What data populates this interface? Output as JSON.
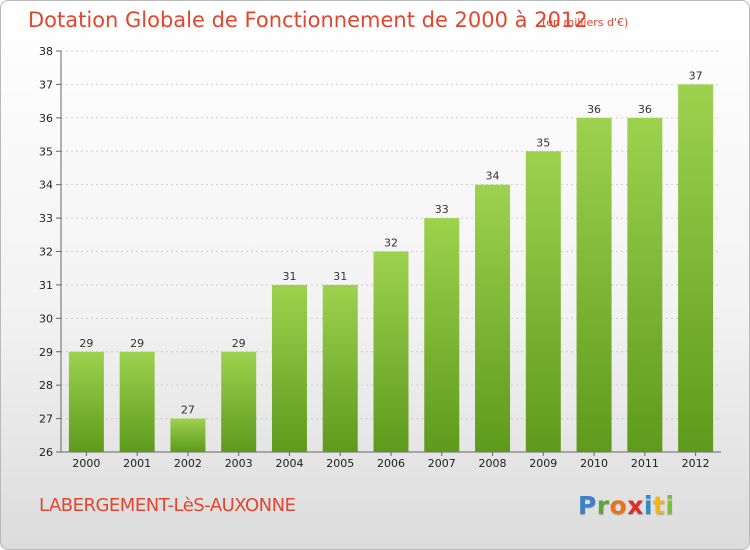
{
  "header": {
    "title": "Dotation Globale de Fonctionnement de 2000 à 2012",
    "unit": "(en milliers d'€)"
  },
  "footer": {
    "commune": "LABERGEMENT-LèS-AUXONNE",
    "logo_letters": [
      {
        "char": "P",
        "color": "#3f7fc6"
      },
      {
        "char": "r",
        "color": "#5aa83a"
      },
      {
        "char": "o",
        "color": "#e8731d"
      },
      {
        "char": "x",
        "color": "#d9302c"
      },
      {
        "char": "i",
        "color": "#2f8ac9"
      },
      {
        "char": "t",
        "color": "#f1b41b"
      },
      {
        "char": "i",
        "color": "#7bbf3a"
      }
    ]
  },
  "colors": {
    "bar_top": "#9dd24f",
    "bar_bottom": "#5e9a1b",
    "title": "#e3462f"
  },
  "chart_data": {
    "type": "bar",
    "title": "Dotation Globale de Fonctionnement de 2000 à 2012",
    "subtitle": "(en milliers d'€)",
    "xlabel": "",
    "ylabel": "",
    "categories": [
      "2000",
      "2001",
      "2002",
      "2003",
      "2004",
      "2005",
      "2006",
      "2007",
      "2008",
      "2009",
      "2010",
      "2011",
      "2012"
    ],
    "values": [
      29,
      29,
      27,
      29,
      31,
      31,
      32,
      33,
      34,
      35,
      36,
      36,
      37
    ],
    "ylim": [
      26,
      38
    ],
    "yticks": [
      26,
      27,
      28,
      29,
      30,
      31,
      32,
      33,
      34,
      35,
      36,
      37,
      38
    ],
    "grid": true,
    "data_labels": true
  }
}
